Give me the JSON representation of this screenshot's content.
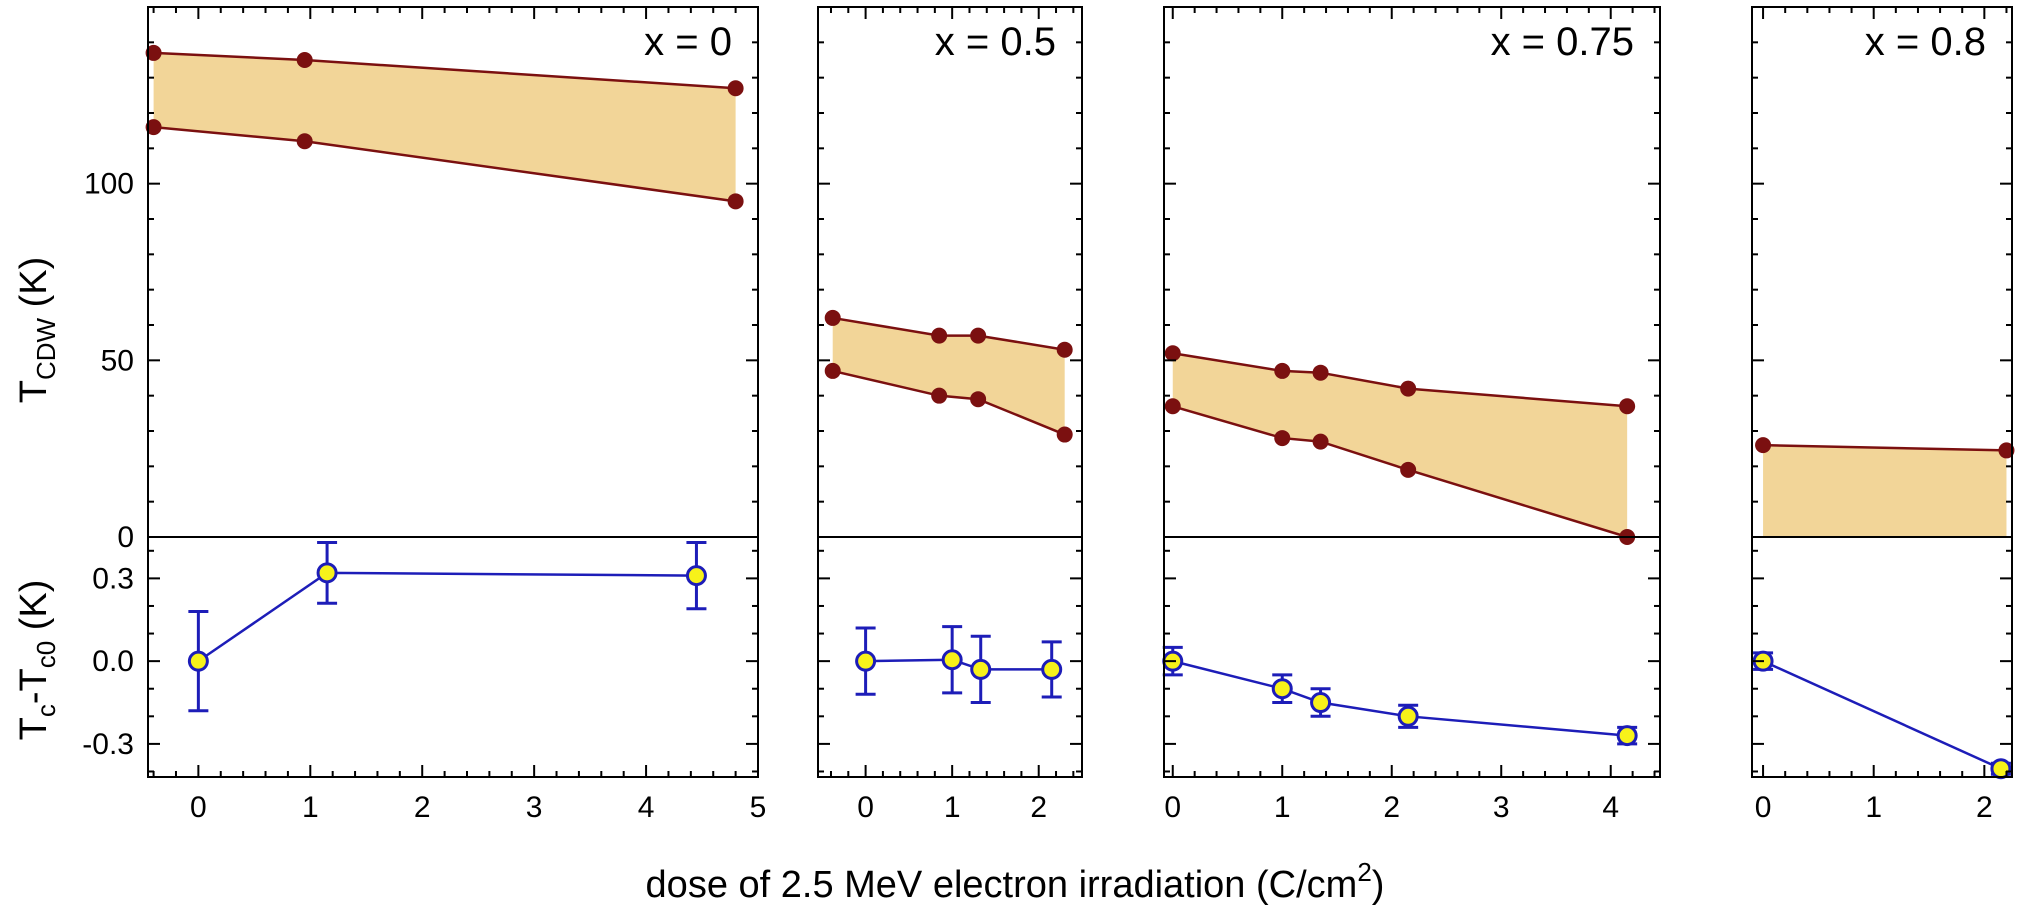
{
  "chart_data": {
    "type": "line",
    "xlabel_main": "dose of 2.5 MeV electron irradiation (C/cm",
    "xlabel_sup": "2",
    "xlabel_close": ")",
    "top_ylabel": {
      "main": "T",
      "sub": "CDW",
      "unit": " (K)"
    },
    "bottom_ylabel": {
      "t1": "T",
      "s1": "c",
      "mid": "-T",
      "s2": "c0",
      "unit": " (K)"
    },
    "top_ylim": [
      0,
      150
    ],
    "top_yticks": [
      "0",
      "50",
      "100"
    ],
    "bottom_ylim": [
      -0.42,
      0.45
    ],
    "bottom_yticks": [
      "-0.3",
      "0.0",
      "0.3"
    ],
    "colors": {
      "band_fill": "#f2d598",
      "cdw_line": "#7b1010",
      "cdw_marker": "#7b1010",
      "tc_line": "#1d1db8",
      "tc_marker_fill": "#f7f21a",
      "tc_marker_edge": "#1d1db8"
    },
    "panels": [
      {
        "label": "x = 0",
        "xlim": [
          -0.45,
          5.0
        ],
        "xticks": [
          "0",
          "1",
          "2",
          "3",
          "4",
          "5"
        ],
        "band_upper": {
          "x": [
            -0.4,
            0.95,
            4.8
          ],
          "y": [
            137,
            135,
            127
          ]
        },
        "band_lower": {
          "x": [
            -0.4,
            0.95,
            4.8
          ],
          "y": [
            116,
            112,
            95
          ]
        },
        "tc": {
          "x": [
            0,
            1.15,
            4.45
          ],
          "y": [
            0.0,
            0.32,
            0.31
          ],
          "err": [
            0.18,
            0.11,
            0.12
          ]
        }
      },
      {
        "label": "x = 0.5",
        "xlim": [
          -0.55,
          2.5
        ],
        "xticks": [
          "0",
          "1",
          "2"
        ],
        "band_upper": {
          "x": [
            -0.38,
            0.85,
            1.3,
            2.3
          ],
          "y": [
            62,
            57,
            57,
            53
          ]
        },
        "band_lower": {
          "x": [
            -0.38,
            0.85,
            1.3,
            2.3
          ],
          "y": [
            47,
            40,
            39,
            29
          ]
        },
        "tc": {
          "x": [
            0,
            1.0,
            1.33,
            2.15
          ],
          "y": [
            0.0,
            0.005,
            -0.03,
            -0.03
          ],
          "err": [
            0.12,
            0.12,
            0.12,
            0.1
          ]
        }
      },
      {
        "label": "x = 0.75",
        "xlim": [
          -0.08,
          4.45
        ],
        "xticks": [
          "0",
          "1",
          "2",
          "3",
          "4"
        ],
        "band_upper": {
          "x": [
            0,
            1.0,
            1.35,
            2.15,
            4.15
          ],
          "y": [
            52,
            47,
            46.5,
            42,
            37
          ]
        },
        "band_lower": {
          "x": [
            0,
            1.0,
            1.35,
            2.15,
            4.15
          ],
          "y": [
            37,
            28,
            27,
            19,
            0
          ]
        },
        "tc": {
          "x": [
            0,
            1.0,
            1.35,
            2.15,
            4.15
          ],
          "y": [
            0.0,
            -0.1,
            -0.15,
            -0.2,
            -0.27
          ],
          "err": [
            0.05,
            0.05,
            0.05,
            0.04,
            0.03
          ]
        }
      },
      {
        "label": "x = 0.8",
        "xlim": [
          -0.1,
          2.25
        ],
        "xticks": [
          "0",
          "1",
          "2"
        ],
        "band_upper": {
          "x": [
            0,
            2.2
          ],
          "y": [
            26,
            24.5
          ]
        },
        "band_lower": {
          "x": [
            0,
            2.2
          ],
          "y": [
            0,
            0
          ]
        },
        "tc": {
          "x": [
            0,
            2.15
          ],
          "y": [
            0.0,
            -0.39
          ],
          "err": [
            0.03,
            0.02
          ]
        }
      }
    ]
  }
}
